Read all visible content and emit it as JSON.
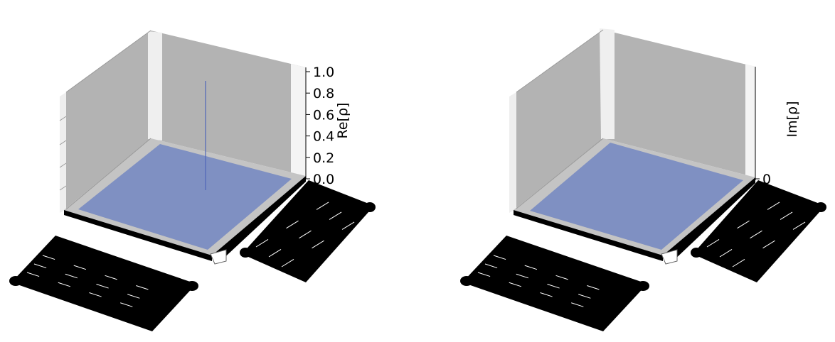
{
  "chart_data": [
    {
      "type": "bar3d",
      "zlabel": "Re[ρ]",
      "zticks": [
        "0.0",
        "0.2",
        "0.4",
        "0.6",
        "0.8",
        "1.0"
      ],
      "zlim": [
        0,
        1.0
      ],
      "peak_value": 1.0,
      "baseline_value": 0.0,
      "bar_color": "#7f90c2",
      "pane_color": "#b3b3b3"
    },
    {
      "type": "bar3d",
      "zlabel": "Im[ρ]",
      "zticks": [
        "0"
      ],
      "zlim": [
        0,
        1.0
      ],
      "peak_value": 0.0,
      "baseline_value": 0.0,
      "bar_color": "#7f90c2",
      "pane_color": "#b3b3b3"
    }
  ]
}
